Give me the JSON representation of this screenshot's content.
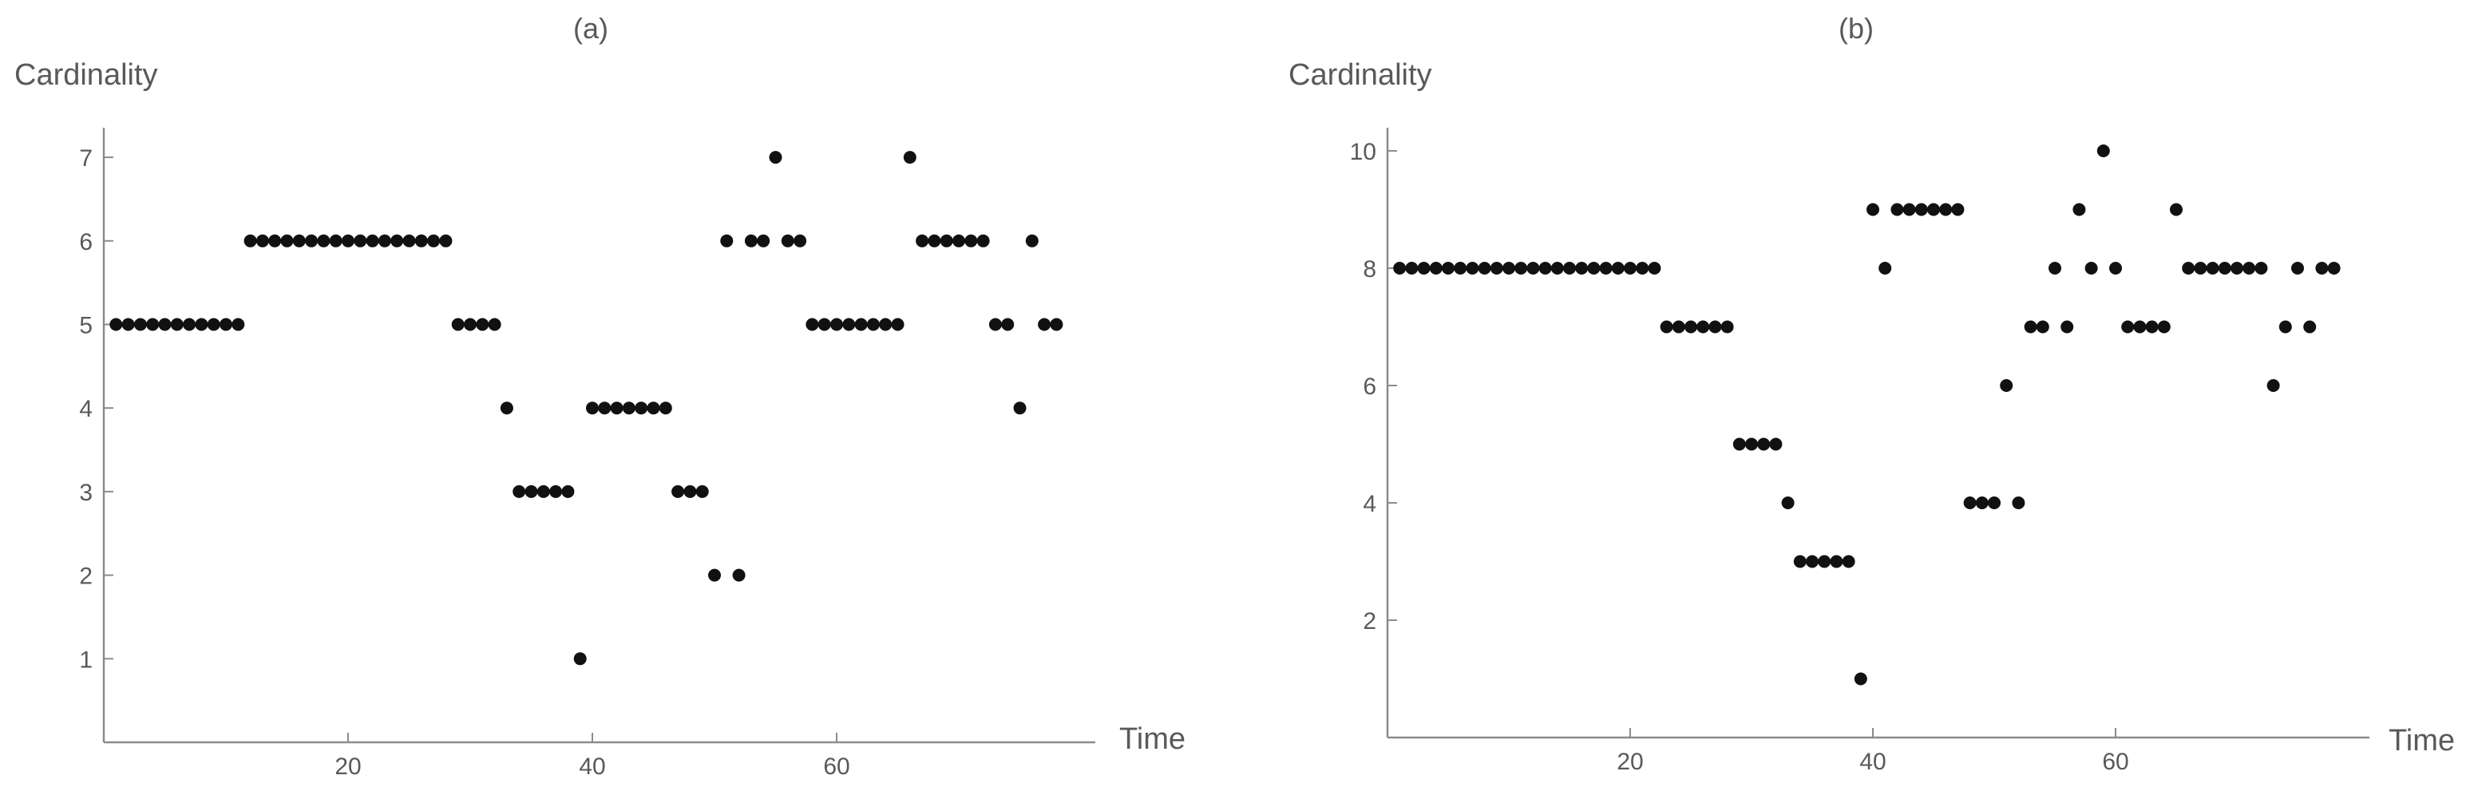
{
  "chart_data": [
    {
      "type": "scatter",
      "title": "(a)",
      "xlabel": "Time",
      "ylabel": "Cardinality",
      "xlim": [
        0,
        80
      ],
      "ylim": [
        0,
        7.5
      ],
      "x_ticks": [
        20,
        40,
        60
      ],
      "y_ticks": [
        1,
        2,
        3,
        4,
        5,
        6,
        7
      ],
      "grid": false,
      "x": [
        1,
        2,
        3,
        4,
        5,
        6,
        7,
        8,
        9,
        10,
        11,
        12,
        13,
        14,
        15,
        16,
        17,
        18,
        19,
        20,
        21,
        22,
        23,
        24,
        25,
        26,
        27,
        28,
        29,
        30,
        31,
        32,
        33,
        34,
        35,
        36,
        37,
        38,
        39,
        40,
        41,
        42,
        43,
        44,
        45,
        46,
        47,
        48,
        49,
        50,
        51,
        52,
        53,
        54,
        55,
        56,
        57,
        58,
        59,
        60,
        61,
        62,
        63,
        64,
        65,
        66,
        67,
        68,
        69,
        70,
        71,
        72,
        73,
        74,
        75,
        76,
        77,
        78
      ],
      "y": [
        5,
        5,
        5,
        5,
        5,
        5,
        5,
        5,
        5,
        5,
        5,
        6,
        6,
        6,
        6,
        6,
        6,
        6,
        6,
        6,
        6,
        6,
        6,
        6,
        6,
        6,
        6,
        6,
        5,
        5,
        5,
        5,
        4,
        3,
        3,
        3,
        3,
        3,
        1,
        4,
        4,
        4,
        4,
        4,
        4,
        4,
        3,
        3,
        3,
        2,
        6,
        2,
        6,
        6,
        7,
        6,
        6,
        5,
        5,
        5,
        5,
        5,
        5,
        5,
        5,
        7,
        6,
        6,
        6,
        6,
        6,
        6,
        5,
        5,
        4,
        6,
        5,
        5
      ]
    },
    {
      "type": "scatter",
      "title": "(b)",
      "xlabel": "Time",
      "ylabel": "Cardinality",
      "xlim": [
        0,
        80
      ],
      "ylim": [
        0,
        10.5
      ],
      "x_ticks": [
        20,
        40,
        60
      ],
      "y_ticks": [
        2,
        4,
        6,
        8,
        10
      ],
      "grid": false,
      "x": [
        1,
        2,
        3,
        4,
        5,
        6,
        7,
        8,
        9,
        10,
        11,
        12,
        13,
        14,
        15,
        16,
        17,
        18,
        19,
        20,
        21,
        22,
        23,
        24,
        25,
        26,
        27,
        28,
        29,
        30,
        31,
        32,
        33,
        34,
        35,
        36,
        37,
        38,
        39,
        40,
        41,
        42,
        43,
        44,
        45,
        46,
        47,
        48,
        49,
        50,
        51,
        52,
        53,
        54,
        55,
        56,
        57,
        58,
        59,
        60,
        61,
        62,
        63,
        64,
        65,
        66,
        67,
        68,
        69,
        70,
        71,
        72,
        73,
        74,
        75,
        76,
        77,
        78
      ],
      "y": [
        8,
        8,
        8,
        8,
        8,
        8,
        8,
        8,
        8,
        8,
        8,
        8,
        8,
        8,
        8,
        8,
        8,
        8,
        8,
        8,
        8,
        8,
        7,
        7,
        7,
        7,
        7,
        7,
        5,
        5,
        5,
        5,
        4,
        3,
        3,
        3,
        3,
        3,
        1,
        9,
        8,
        9,
        9,
        9,
        9,
        9,
        9,
        4,
        4,
        4,
        6,
        4,
        7,
        7,
        8,
        7,
        9,
        8,
        10,
        8,
        7,
        7,
        7,
        7,
        9,
        8,
        8,
        8,
        8,
        8,
        8,
        8,
        6,
        7,
        8,
        7,
        8,
        8
      ]
    }
  ]
}
